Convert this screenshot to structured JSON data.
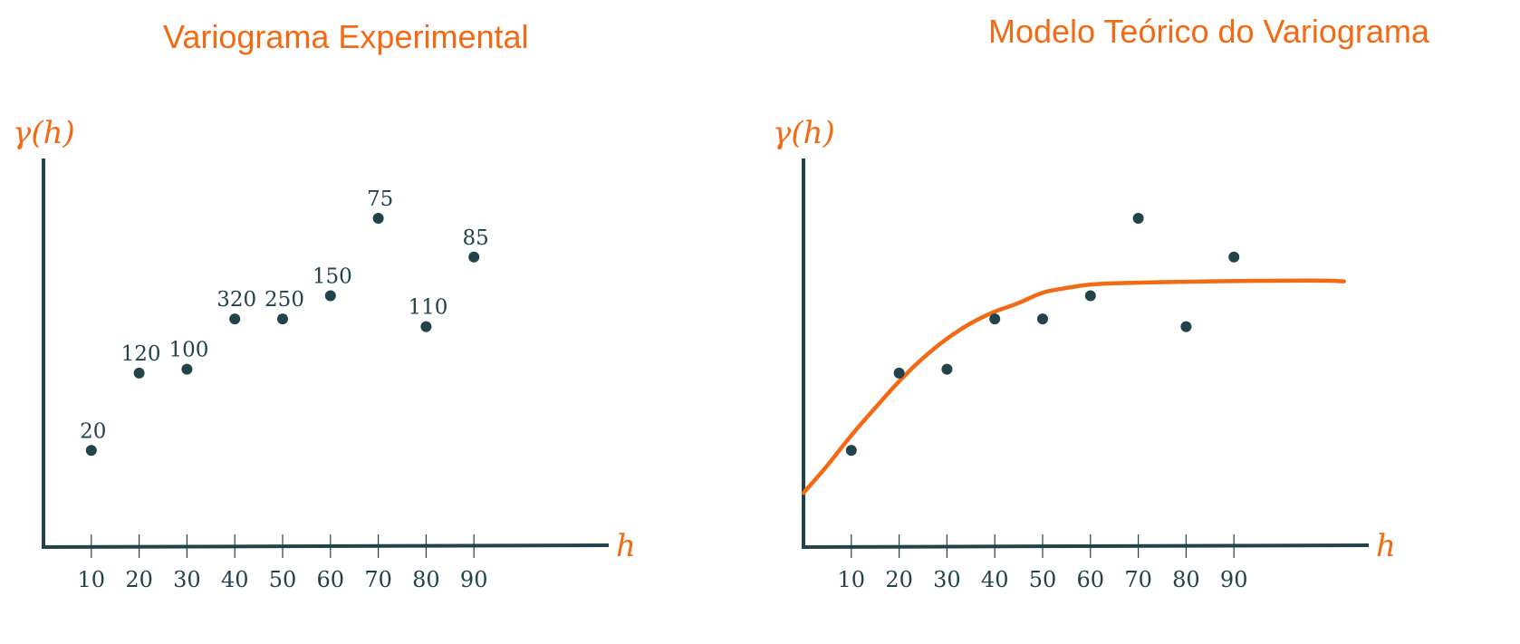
{
  "chart_data": [
    {
      "type": "scatter",
      "title": "Variograma Experimental",
      "ylabel": "γ(h)",
      "xlabel": "h",
      "x": [
        10,
        20,
        30,
        40,
        50,
        60,
        70,
        80,
        90
      ],
      "y": [
        2.5,
        4.5,
        4.6,
        5.9,
        5.9,
        6.5,
        8.5,
        5.7,
        7.5
      ],
      "point_labels": [
        "20",
        "120",
        "100",
        "320",
        "250",
        "150",
        "75",
        "110",
        "85"
      ],
      "x_ticks": [
        "10",
        "20",
        "30",
        "40",
        "50",
        "60",
        "70",
        "80",
        "90"
      ],
      "xlim": [
        0,
        120
      ],
      "ylim": [
        0,
        10
      ],
      "grid": false,
      "colors": {
        "axis": "#22434a",
        "points": "#22434a",
        "accent": "#f26a13"
      }
    },
    {
      "type": "scatter",
      "title": "Modelo Teórico do Variograma",
      "ylabel": "γ(h)",
      "xlabel": "h",
      "x": [
        10,
        20,
        30,
        40,
        50,
        60,
        70,
        80,
        90
      ],
      "y": [
        2.5,
        4.5,
        4.6,
        5.9,
        5.9,
        6.5,
        8.5,
        5.7,
        7.5
      ],
      "x_ticks": [
        "10",
        "20",
        "30",
        "40",
        "50",
        "60",
        "70",
        "80",
        "90"
      ],
      "model_curve": {
        "x": [
          0,
          5,
          10,
          15,
          20,
          25,
          30,
          35,
          40,
          45,
          50,
          55,
          60,
          70,
          80,
          90,
          100,
          110,
          113
        ],
        "y": [
          1.4,
          2.1,
          2.9,
          3.6,
          4.3,
          4.9,
          5.4,
          5.8,
          6.1,
          6.3,
          6.6,
          6.7,
          6.8,
          6.84,
          6.86,
          6.88,
          6.89,
          6.89,
          6.87
        ]
      },
      "xlim": [
        0,
        120
      ],
      "ylim": [
        0,
        10
      ],
      "grid": false,
      "colors": {
        "axis": "#22434a",
        "points": "#22434a",
        "curve": "#f26a13",
        "accent": "#f26a13"
      }
    }
  ]
}
